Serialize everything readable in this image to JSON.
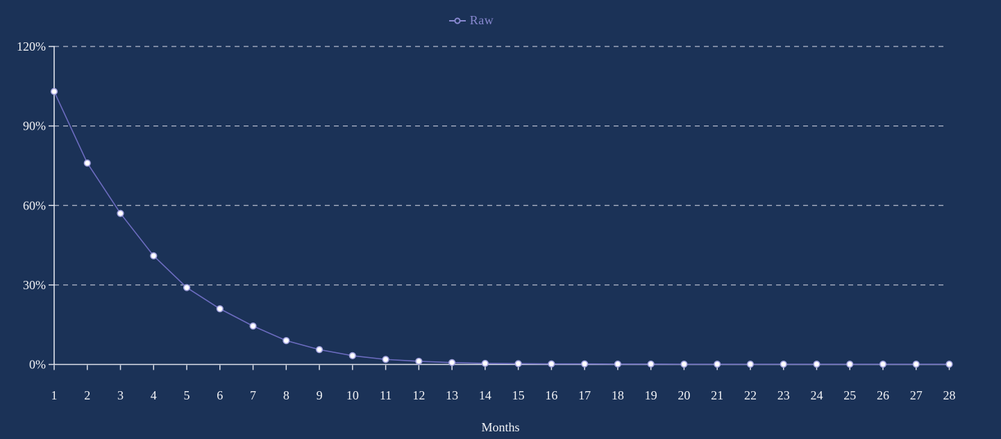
{
  "colors": {
    "background": "#1b3257",
    "series_line": "#6c6cc0",
    "marker_fill": "#ffffff",
    "marker_ring": "#a6a6e0",
    "legend_text": "#8888d0",
    "gridline": "#c8ccda",
    "axis_line": "#dee1eb",
    "tick_text": "#f2f3f6"
  },
  "legend": {
    "label": "Raw",
    "marker": "open-circle-on-line"
  },
  "chart_data": {
    "type": "line",
    "title": "",
    "xlabel": "Months",
    "ylabel": "",
    "legend_position": "top-center",
    "grid": "horizontal-dashed",
    "x": [
      1,
      2,
      3,
      4,
      5,
      6,
      7,
      8,
      9,
      10,
      11,
      12,
      13,
      14,
      15,
      16,
      17,
      18,
      19,
      20,
      21,
      22,
      23,
      24,
      25,
      26,
      27,
      28
    ],
    "series": [
      {
        "name": "Raw",
        "values": [
          103,
          76,
          57,
          41,
          29,
          21,
          14.5,
          9,
          5.6,
          3.3,
          1.9,
          1.2,
          0.7,
          0.4,
          0.3,
          0.2,
          0.2,
          0.15,
          0.15,
          0.1,
          0.1,
          0.1,
          0.1,
          0.1,
          0.1,
          0.1,
          0.1,
          0.1
        ]
      }
    ],
    "ylim": [
      0,
      120
    ],
    "yticks": {
      "values": [
        0,
        30,
        60,
        90,
        120
      ],
      "labels": [
        "0%",
        "30%",
        "60%",
        "90%",
        "120%"
      ]
    }
  }
}
